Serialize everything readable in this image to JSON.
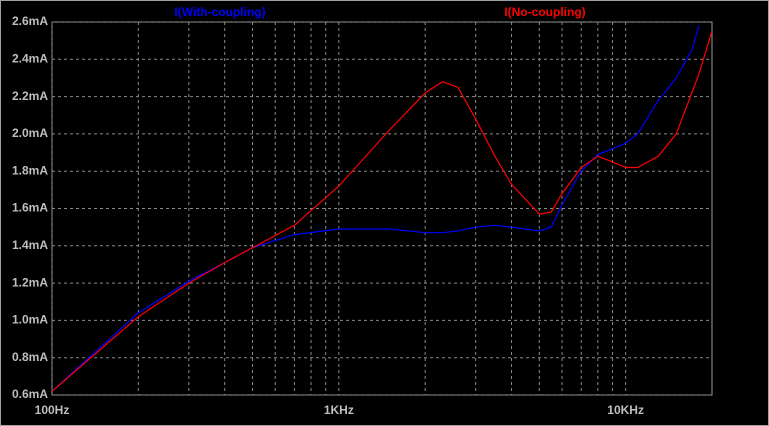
{
  "chart_data": {
    "type": "line",
    "xscale": "log",
    "x": [
      100,
      200,
      300,
      400,
      500,
      700,
      1000,
      1500,
      2000,
      2300,
      2600,
      3000,
      3500,
      4000,
      5000,
      5500,
      6000,
      7000,
      8000,
      9000,
      10000,
      11000,
      13000,
      15000,
      17000,
      18000,
      20000
    ],
    "series": [
      {
        "name": "I(With-coupling)",
        "color": "#0000ff",
        "values": [
          0.62,
          1.04,
          1.21,
          1.31,
          1.39,
          1.46,
          1.49,
          1.49,
          1.47,
          1.47,
          1.48,
          1.5,
          1.51,
          1.5,
          1.48,
          1.5,
          1.62,
          1.8,
          1.89,
          1.92,
          1.95,
          2.0,
          2.18,
          2.3,
          2.45,
          2.58,
          null
        ]
      },
      {
        "name": "I(No-coupling)",
        "color": "#ff0000",
        "values": [
          0.62,
          1.02,
          1.2,
          1.31,
          1.39,
          1.51,
          1.72,
          2.02,
          2.22,
          2.28,
          2.25,
          2.08,
          1.88,
          1.73,
          1.57,
          1.58,
          1.68,
          1.82,
          1.88,
          1.85,
          1.82,
          1.82,
          1.88,
          2.0,
          2.22,
          2.32,
          2.55
        ]
      }
    ],
    "xlim": [
      100,
      20000
    ],
    "xticks": [
      {
        "value": 100,
        "label": "100Hz"
      },
      {
        "value": 1000,
        "label": "1KHz"
      },
      {
        "value": 10000,
        "label": "10KHz"
      }
    ],
    "x_minor_grid": [
      200,
      300,
      400,
      500,
      600,
      700,
      800,
      900,
      2000,
      3000,
      4000,
      5000,
      6000,
      7000,
      8000,
      9000
    ],
    "ylim": [
      0.6,
      2.6
    ],
    "yticks": [
      {
        "value": 0.6,
        "label": "0.6mA"
      },
      {
        "value": 0.8,
        "label": "0.8mA"
      },
      {
        "value": 1.0,
        "label": "1.0mA"
      },
      {
        "value": 1.2,
        "label": "1.2mA"
      },
      {
        "value": 1.4,
        "label": "1.4mA"
      },
      {
        "value": 1.6,
        "label": "1.6mA"
      },
      {
        "value": 1.8,
        "label": "1.8mA"
      },
      {
        "value": 2.0,
        "label": "2.0mA"
      },
      {
        "value": 2.2,
        "label": "2.2mA"
      },
      {
        "value": 2.4,
        "label": "2.4mA"
      },
      {
        "value": 2.6,
        "label": "2.6mA"
      }
    ],
    "grid": true
  }
}
